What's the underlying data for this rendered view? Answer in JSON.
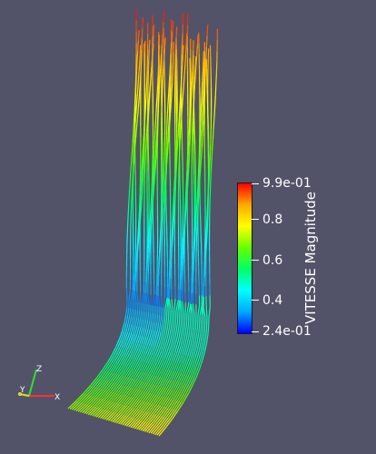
{
  "legend": {
    "title": "VITESSE Magnitude",
    "labels": [
      "9.9e-01",
      "0.8",
      "0.6",
      "0.4",
      "2.4e-01"
    ],
    "range": [
      0.24,
      0.99
    ],
    "colormap": [
      "#0000ff",
      "#00aaff",
      "#00ffff",
      "#00ff66",
      "#66ff00",
      "#ffff00",
      "#ffaa00",
      "#ff0000"
    ]
  },
  "axes": {
    "x_label": "X",
    "y_label": "Y",
    "z_label": "Z",
    "x_color": "#ff3030",
    "y_color": "#e0e020",
    "z_color": "#30e030"
  },
  "background_color": "#525368"
}
